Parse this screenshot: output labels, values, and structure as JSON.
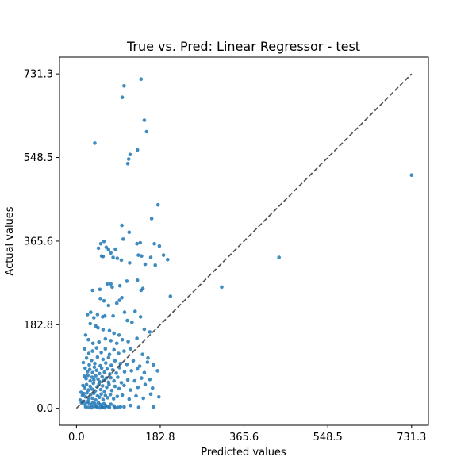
{
  "chart_data": {
    "type": "scatter",
    "title": "True vs. Pred: Linear Regressor - test",
    "xlabel": "Predicted values",
    "ylabel": "Actual values",
    "xlim": [
      -37,
      768
    ],
    "ylim": [
      -37,
      768
    ],
    "xticks": [
      {
        "value": 0.0,
        "label": "0.0"
      },
      {
        "value": 182.8,
        "label": "182.8"
      },
      {
        "value": 365.6,
        "label": "365.6"
      },
      {
        "value": 548.5,
        "label": "548.5"
      },
      {
        "value": 731.3,
        "label": "731.3"
      }
    ],
    "yticks": [
      {
        "value": 0.0,
        "label": "0.0"
      },
      {
        "value": 182.8,
        "label": "182.8"
      },
      {
        "value": 365.6,
        "label": "365.6"
      },
      {
        "value": 548.5,
        "label": "548.5"
      },
      {
        "value": 731.3,
        "label": "731.3"
      }
    ],
    "reference_line": {
      "style": "dashed",
      "color": "#404040",
      "from": [
        0,
        0
      ],
      "to": [
        731.3,
        731.3
      ]
    },
    "grid": false,
    "legend": "none",
    "colors": {
      "points": "#1f77b4",
      "axes": "#000000"
    },
    "points": [
      [
        731.3,
        510
      ],
      [
        442,
        330
      ],
      [
        317,
        265
      ],
      [
        205,
        245
      ],
      [
        141,
        720
      ],
      [
        104,
        705
      ],
      [
        100,
        680
      ],
      [
        148,
        630
      ],
      [
        153,
        605
      ],
      [
        133,
        565
      ],
      [
        117,
        555
      ],
      [
        114,
        545
      ],
      [
        112,
        535
      ],
      [
        40,
        580
      ],
      [
        178,
        445
      ],
      [
        164,
        415
      ],
      [
        99,
        400
      ],
      [
        115,
        385
      ],
      [
        102,
        370
      ],
      [
        132,
        360
      ],
      [
        139,
        362
      ],
      [
        170,
        360
      ],
      [
        181,
        355
      ],
      [
        190,
        335
      ],
      [
        199,
        325
      ],
      [
        60,
        365
      ],
      [
        53,
        360
      ],
      [
        48,
        350
      ],
      [
        65,
        352
      ],
      [
        70,
        347
      ],
      [
        85,
        348
      ],
      [
        75,
        340
      ],
      [
        55,
        333
      ],
      [
        58,
        332
      ],
      [
        80,
        330
      ],
      [
        89,
        328
      ],
      [
        98,
        324
      ],
      [
        135,
        335
      ],
      [
        142,
        333
      ],
      [
        162,
        330
      ],
      [
        150,
        315
      ],
      [
        172,
        313
      ],
      [
        116,
        318
      ],
      [
        67,
        272
      ],
      [
        75,
        272
      ],
      [
        95,
        268
      ],
      [
        78,
        265
      ],
      [
        110,
        278
      ],
      [
        133,
        280
      ],
      [
        145,
        262
      ],
      [
        141,
        258
      ],
      [
        35,
        258
      ],
      [
        51,
        260
      ],
      [
        99,
        242
      ],
      [
        94,
        236
      ],
      [
        88,
        230
      ],
      [
        70,
        225
      ],
      [
        60,
        235
      ],
      [
        52,
        240
      ],
      [
        46,
        205
      ],
      [
        31,
        210
      ],
      [
        24,
        205
      ],
      [
        38,
        198
      ],
      [
        57,
        200
      ],
      [
        62,
        202
      ],
      [
        80,
        202
      ],
      [
        105,
        210
      ],
      [
        128,
        212
      ],
      [
        140,
        200
      ],
      [
        111,
        192
      ],
      [
        121,
        188
      ],
      [
        30,
        185
      ],
      [
        42,
        180
      ],
      [
        47,
        176
      ],
      [
        58,
        172
      ],
      [
        72,
        170
      ],
      [
        82,
        164
      ],
      [
        93,
        160
      ],
      [
        148,
        173
      ],
      [
        160,
        167
      ],
      [
        20,
        160
      ],
      [
        26,
        150
      ],
      [
        36,
        142
      ],
      [
        49,
        145
      ],
      [
        63,
        152
      ],
      [
        75,
        148
      ],
      [
        88,
        142
      ],
      [
        100,
        150
      ],
      [
        113,
        146
      ],
      [
        132,
        153
      ],
      [
        18,
        130
      ],
      [
        27,
        120
      ],
      [
        35,
        125
      ],
      [
        44,
        132
      ],
      [
        54,
        122
      ],
      [
        63,
        130
      ],
      [
        72,
        118
      ],
      [
        82,
        128
      ],
      [
        92,
        120
      ],
      [
        104,
        125
      ],
      [
        118,
        130
      ],
      [
        144,
        118
      ],
      [
        156,
        110
      ],
      [
        15,
        100
      ],
      [
        22,
        110
      ],
      [
        28,
        95
      ],
      [
        33,
        105
      ],
      [
        40,
        98
      ],
      [
        46,
        112
      ],
      [
        52,
        93
      ],
      [
        58,
        107
      ],
      [
        64,
        99
      ],
      [
        70,
        111
      ],
      [
        76,
        94
      ],
      [
        84,
        104
      ],
      [
        96,
        98
      ],
      [
        110,
        96
      ],
      [
        124,
        104
      ],
      [
        138,
        92
      ],
      [
        155,
        101
      ],
      [
        168,
        95
      ],
      [
        19,
        88
      ],
      [
        24,
        80
      ],
      [
        29,
        85
      ],
      [
        35,
        78
      ],
      [
        39,
        90
      ],
      [
        44,
        83
      ],
      [
        50,
        76
      ],
      [
        55,
        88
      ],
      [
        61,
        79
      ],
      [
        67,
        86
      ],
      [
        73,
        75
      ],
      [
        79,
        84
      ],
      [
        87,
        77
      ],
      [
        94,
        89
      ],
      [
        105,
        80
      ],
      [
        120,
        82
      ],
      [
        133,
        86
      ],
      [
        148,
        78
      ],
      [
        177,
        82
      ],
      [
        17,
        70
      ],
      [
        21,
        65
      ],
      [
        25,
        72
      ],
      [
        30,
        60
      ],
      [
        34,
        68
      ],
      [
        38,
        62
      ],
      [
        42,
        71
      ],
      [
        47,
        64
      ],
      [
        51,
        58
      ],
      [
        56,
        69
      ],
      [
        60,
        61
      ],
      [
        65,
        66
      ],
      [
        70,
        57
      ],
      [
        75,
        67
      ],
      [
        82,
        60
      ],
      [
        90,
        68
      ],
      [
        98,
        56
      ],
      [
        112,
        62
      ],
      [
        127,
        60
      ],
      [
        142,
        66
      ],
      [
        160,
        63
      ],
      [
        14,
        50
      ],
      [
        18,
        45
      ],
      [
        22,
        52
      ],
      [
        26,
        40
      ],
      [
        30,
        48
      ],
      [
        34,
        42
      ],
      [
        37,
        55
      ],
      [
        41,
        38
      ],
      [
        45,
        47
      ],
      [
        49,
        53
      ],
      [
        53,
        41
      ],
      [
        57,
        49
      ],
      [
        61,
        36
      ],
      [
        66,
        46
      ],
      [
        71,
        52
      ],
      [
        77,
        39
      ],
      [
        84,
        48
      ],
      [
        93,
        43
      ],
      [
        104,
        50
      ],
      [
        118,
        40
      ],
      [
        134,
        46
      ],
      [
        150,
        52
      ],
      [
        166,
        44
      ],
      [
        10,
        35
      ],
      [
        13,
        28
      ],
      [
        16,
        32
      ],
      [
        20,
        25
      ],
      [
        23,
        34
      ],
      [
        27,
        20
      ],
      [
        31,
        30
      ],
      [
        35,
        22
      ],
      [
        38,
        33
      ],
      [
        42,
        18
      ],
      [
        46,
        27
      ],
      [
        50,
        24
      ],
      [
        54,
        31
      ],
      [
        58,
        19
      ],
      [
        63,
        28
      ],
      [
        68,
        23
      ],
      [
        74,
        30
      ],
      [
        81,
        21
      ],
      [
        89,
        26
      ],
      [
        100,
        29
      ],
      [
        115,
        20
      ],
      [
        130,
        27
      ],
      [
        146,
        22
      ],
      [
        162,
        31
      ],
      [
        180,
        25
      ],
      [
        8,
        18
      ],
      [
        11,
        12
      ],
      [
        15,
        15
      ],
      [
        19,
        9
      ],
      [
        23,
        14
      ],
      [
        28,
        11
      ],
      [
        32,
        7
      ],
      [
        36,
        13
      ],
      [
        40,
        10
      ],
      [
        44,
        5
      ],
      [
        48,
        12
      ],
      [
        52,
        8
      ],
      [
        56,
        3
      ],
      [
        60,
        10
      ],
      [
        64,
        6
      ],
      [
        69,
        4
      ],
      [
        75,
        9
      ],
      [
        82,
        5
      ],
      [
        90,
        2
      ],
      [
        104,
        3
      ],
      [
        118,
        6
      ],
      [
        136,
        2
      ],
      [
        168,
        3
      ],
      [
        20,
        3
      ],
      [
        26,
        2
      ],
      [
        33,
        1
      ],
      [
        39,
        4
      ],
      [
        45,
        2
      ],
      [
        51,
        1
      ],
      [
        57,
        2
      ],
      [
        62,
        1
      ],
      [
        72,
        2
      ],
      [
        84,
        1
      ],
      [
        96,
        3
      ]
    ]
  }
}
